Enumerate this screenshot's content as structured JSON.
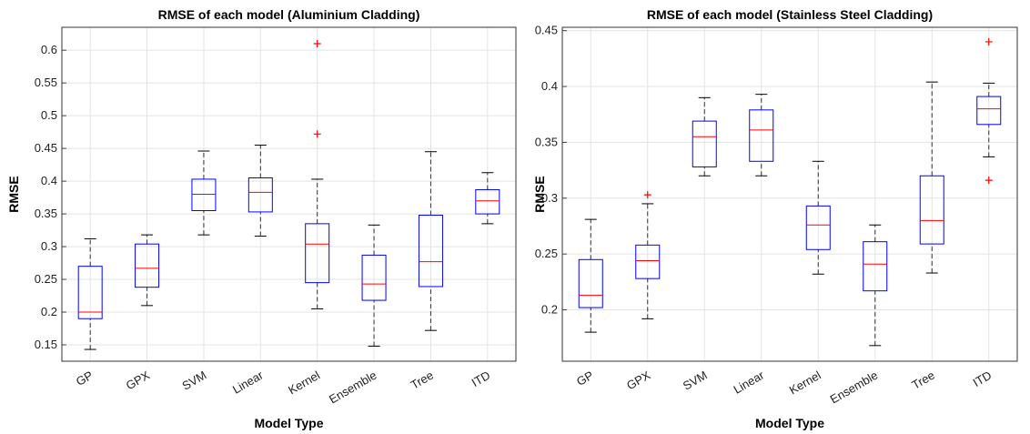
{
  "chart_data": [
    {
      "type": "box",
      "title": "RMSE of each model (Aluminium Cladding)",
      "x_label": "Model Type",
      "y_label": "RMSE",
      "categories": [
        "GP",
        "GPX",
        "SVM",
        "Linear",
        "Kernel",
        "Ensemble",
        "Tree",
        "ITD"
      ],
      "whisker_low": [
        0.143,
        0.21,
        0.318,
        0.316,
        0.205,
        0.148,
        0.172,
        0.335
      ],
      "q1": [
        0.19,
        0.238,
        0.355,
        0.353,
        0.245,
        0.218,
        0.239,
        0.35
      ],
      "median": [
        0.2,
        0.267,
        0.38,
        0.383,
        0.304,
        0.243,
        0.277,
        0.37
      ],
      "q3": [
        0.27,
        0.304,
        0.403,
        0.405,
        0.335,
        0.287,
        0.348,
        0.387
      ],
      "whisker_high": [
        0.312,
        0.318,
        0.446,
        0.455,
        0.403,
        0.333,
        0.445,
        0.413
      ],
      "outliers": [
        [],
        [],
        [],
        [],
        [
          0.472,
          0.61
        ],
        [],
        [],
        []
      ],
      "box_color": "#0000ff",
      "median_color": "#ff0000",
      "whisker_color": "#333333",
      "outlier_color": "#ff0000",
      "ylim": [
        0.125,
        0.635
      ],
      "yticks": [
        0.15,
        0.2,
        0.25,
        0.3,
        0.35,
        0.4,
        0.45,
        0.5,
        0.55,
        0.6
      ],
      "grid": true
    },
    {
      "type": "box",
      "title": "RMSE of each model (Stainless Steel Cladding)",
      "x_label": "Model Type",
      "y_label": "RMSE",
      "categories": [
        "GP",
        "GPX",
        "SVM",
        "Linear",
        "Kernel",
        "Ensemble",
        "Tree",
        "ITD"
      ],
      "whisker_low": [
        0.18,
        0.192,
        0.32,
        0.32,
        0.232,
        0.168,
        0.233,
        0.337
      ],
      "q1": [
        0.202,
        0.228,
        0.328,
        0.333,
        0.254,
        0.217,
        0.259,
        0.366
      ],
      "median": [
        0.213,
        0.244,
        0.355,
        0.361,
        0.276,
        0.241,
        0.28,
        0.38
      ],
      "q3": [
        0.245,
        0.258,
        0.369,
        0.379,
        0.293,
        0.261,
        0.32,
        0.391
      ],
      "whisker_high": [
        0.281,
        0.295,
        0.39,
        0.393,
        0.333,
        0.276,
        0.404,
        0.403
      ],
      "outliers": [
        [],
        [
          0.303
        ],
        [],
        [],
        [],
        [],
        [],
        [
          0.44,
          0.316
        ]
      ],
      "box_color": "#0000ff",
      "median_color": "#ff0000",
      "whisker_color": "#333333",
      "outlier_color": "#ff0000",
      "ylim": [
        0.154,
        0.453
      ],
      "yticks": [
        0.2,
        0.25,
        0.3,
        0.35,
        0.4,
        0.45
      ],
      "grid": true
    }
  ]
}
